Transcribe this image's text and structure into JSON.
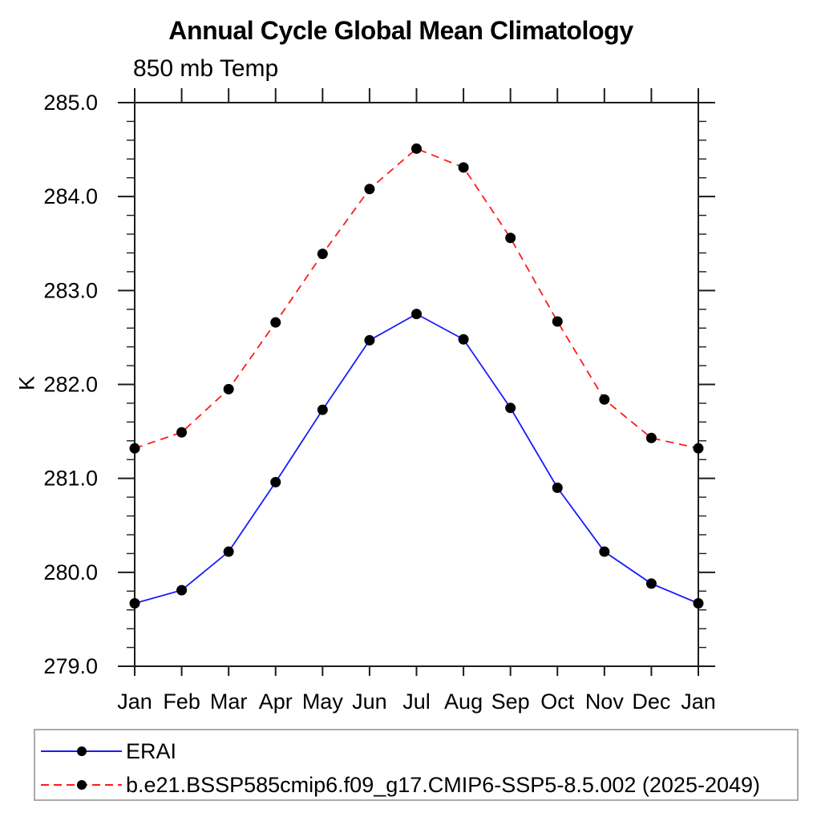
{
  "chart_data": {
    "type": "line",
    "title": "Annual Cycle Global Mean Climatology",
    "subtitle": "850 mb Temp",
    "ylabel": "K",
    "categories": [
      "Jan",
      "Feb",
      "Mar",
      "Apr",
      "May",
      "Jun",
      "Jul",
      "Aug",
      "Sep",
      "Oct",
      "Nov",
      "Dec",
      "Jan"
    ],
    "ylim": [
      279.0,
      285.0
    ],
    "ytick_labels": [
      "279.0",
      "280.0",
      "281.0",
      "282.0",
      "283.0",
      "284.0",
      "285.0"
    ],
    "ytick_minor_step": 0.2,
    "grid": false,
    "legend_position": "bottom-left-box",
    "series": [
      {
        "name": "ERAI",
        "color": "#1a1aff",
        "line_style": "solid",
        "marker": "filled-circle",
        "marker_color": "#000000",
        "values": [
          279.67,
          279.81,
          280.22,
          280.96,
          281.73,
          282.47,
          282.75,
          282.48,
          281.75,
          280.9,
          280.22,
          279.88,
          279.67
        ]
      },
      {
        "name": "b.e21.BSSP585cmip6.f09_g17.CMIP6-SSP5-8.5.002 (2025-2049)",
        "color": "#ff1a1a",
        "line_style": "dashed",
        "marker": "filled-circle",
        "marker_color": "#000000",
        "values": [
          281.32,
          281.49,
          281.95,
          282.66,
          283.39,
          284.08,
          284.51,
          284.31,
          283.56,
          282.67,
          281.84,
          281.43,
          281.32
        ]
      }
    ],
    "colors": {
      "axis": "#1c1c1c",
      "text": "#000000",
      "legend_border": "#ababab",
      "background": "#ffffff"
    }
  }
}
